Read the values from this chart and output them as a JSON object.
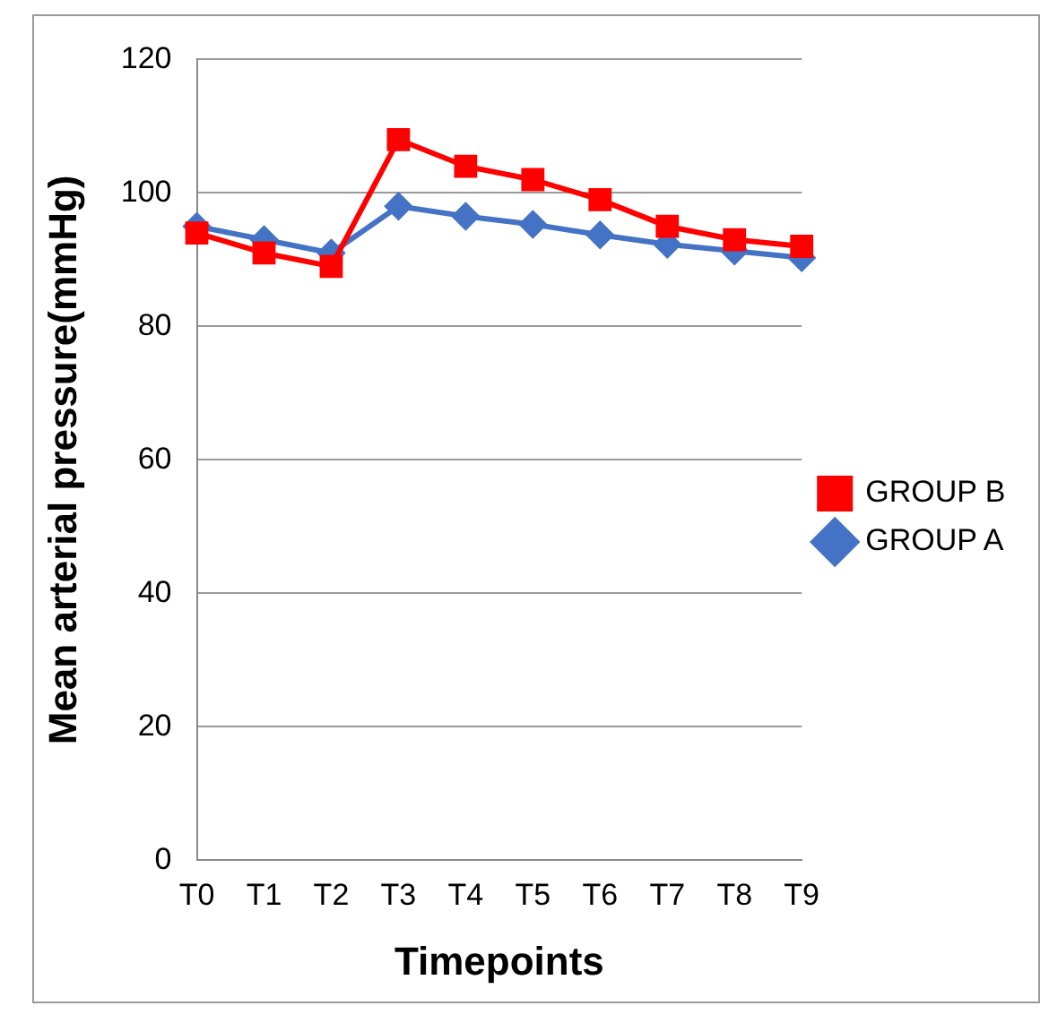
{
  "chart_data": {
    "type": "line",
    "xlabel": "Timepoints",
    "ylabel": "Mean arterial pressure(mmHg)",
    "categories": [
      "T0",
      "T1",
      "T2",
      "T3",
      "T4",
      "T5",
      "T6",
      "T7",
      "T8",
      "T9"
    ],
    "series": [
      {
        "name": "GROUP A",
        "color": "#4472c4",
        "marker": "diamond",
        "values": [
          95,
          93,
          91,
          98,
          96.5,
          95.3,
          93.7,
          92.3,
          91.3,
          90.3
        ]
      },
      {
        "name": "GROUP B",
        "color": "#ff0000",
        "marker": "square",
        "values": [
          94,
          91,
          89,
          108,
          104,
          102,
          99,
          95,
          93,
          92
        ]
      }
    ],
    "ylim": [
      0,
      120
    ],
    "yticks": [
      0,
      20,
      40,
      60,
      80,
      100,
      120
    ],
    "grid": "y",
    "legend": "right"
  }
}
